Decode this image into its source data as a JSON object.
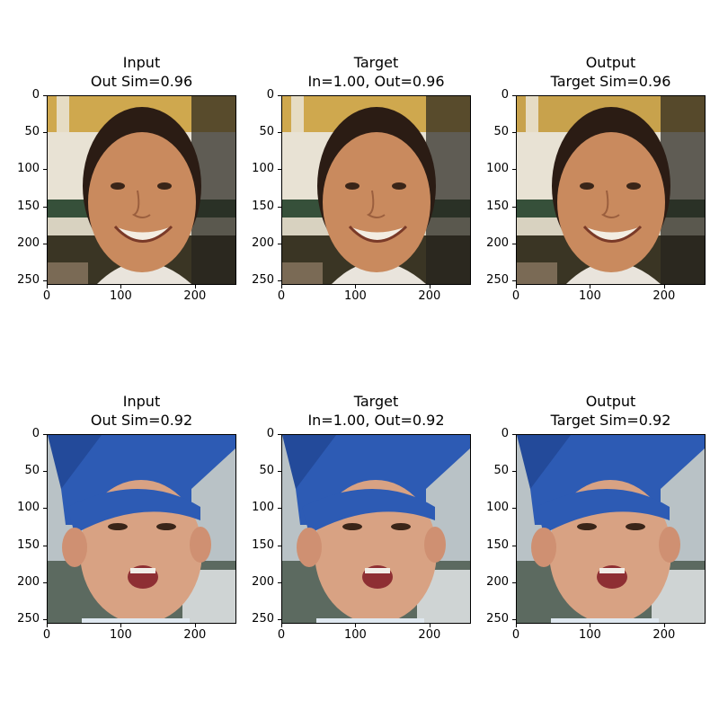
{
  "panels": [
    {
      "title_line1": "Input",
      "title_line2": "Out Sim=0.96",
      "subject": "man-face",
      "image_desc": "face-photo-man"
    },
    {
      "title_line1": "Target",
      "title_line2": "In=1.00, Out=0.96",
      "subject": "man-face",
      "image_desc": "face-photo-man"
    },
    {
      "title_line1": "Output",
      "title_line2": "Target Sim=0.96",
      "subject": "man-face",
      "image_desc": "face-photo-man"
    },
    {
      "title_line1": "Input",
      "title_line2": "Out Sim=0.92",
      "subject": "child-face",
      "image_desc": "face-photo-child"
    },
    {
      "title_line1": "Target",
      "title_line2": "In=1.00, Out=0.92",
      "subject": "child-face",
      "image_desc": "face-photo-child"
    },
    {
      "title_line1": "Output",
      "title_line2": "Target Sim=0.92",
      "subject": "child-face",
      "image_desc": "face-photo-child"
    }
  ],
  "axes": {
    "y_ticks": [
      "0",
      "50",
      "100",
      "150",
      "200",
      "250"
    ],
    "x_ticks": [
      "0",
      "100",
      "200"
    ]
  }
}
